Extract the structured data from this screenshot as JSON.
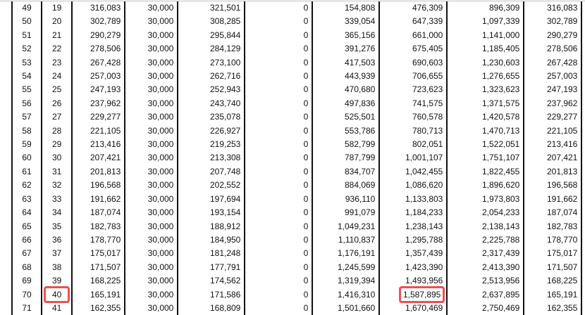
{
  "highlight_color": "#ef4f4f",
  "highlights": [
    {
      "row": 21,
      "col": 1
    },
    {
      "row": 21,
      "col": 7
    }
  ],
  "rows": [
    [
      "49",
      "19",
      "316,083",
      "30,000",
      "321,501",
      "0",
      "154,808",
      "476,309",
      "896,309",
      "316,083"
    ],
    [
      "50",
      "20",
      "302,789",
      "30,000",
      "308,285",
      "0",
      "339,054",
      "647,339",
      "1,097,339",
      "302,789"
    ],
    [
      "51",
      "21",
      "290,279",
      "30,000",
      "295,844",
      "0",
      "365,156",
      "661,000",
      "1,141,000",
      "290,279"
    ],
    [
      "52",
      "22",
      "278,506",
      "30,000",
      "284,129",
      "0",
      "391,276",
      "675,405",
      "1,185,405",
      "278,506"
    ],
    [
      "53",
      "23",
      "267,428",
      "30,000",
      "273,100",
      "0",
      "417,503",
      "690,603",
      "1,230,603",
      "267,428"
    ],
    [
      "54",
      "24",
      "257,003",
      "30,000",
      "262,716",
      "0",
      "443,939",
      "706,655",
      "1,276,655",
      "257,003"
    ],
    [
      "55",
      "25",
      "247,193",
      "30,000",
      "252,943",
      "0",
      "470,680",
      "723,623",
      "1,323,623",
      "247,193"
    ],
    [
      "56",
      "26",
      "237,962",
      "30,000",
      "243,740",
      "0",
      "497,836",
      "741,575",
      "1,371,575",
      "237,962"
    ],
    [
      "57",
      "27",
      "229,277",
      "30,000",
      "235,078",
      "0",
      "525,501",
      "760,578",
      "1,420,578",
      "229,277"
    ],
    [
      "58",
      "28",
      "221,105",
      "30,000",
      "226,927",
      "0",
      "553,786",
      "780,713",
      "1,470,713",
      "221,105"
    ],
    [
      "59",
      "29",
      "213,416",
      "30,000",
      "219,253",
      "0",
      "582,799",
      "802,051",
      "1,522,051",
      "213,416"
    ],
    [
      "60",
      "30",
      "207,421",
      "30,000",
      "213,308",
      "0",
      "787,799",
      "1,001,107",
      "1,751,107",
      "207,421"
    ],
    [
      "61",
      "31",
      "201,813",
      "30,000",
      "207,748",
      "0",
      "834,707",
      "1,042,455",
      "1,822,455",
      "201,813"
    ],
    [
      "62",
      "32",
      "196,568",
      "30,000",
      "202,552",
      "0",
      "884,069",
      "1,086,620",
      "1,896,620",
      "196,568"
    ],
    [
      "63",
      "33",
      "191,662",
      "30,000",
      "197,694",
      "0",
      "936,110",
      "1,133,803",
      "1,973,803",
      "191,662"
    ],
    [
      "64",
      "34",
      "187,074",
      "30,000",
      "193,154",
      "0",
      "991,079",
      "1,184,233",
      "2,054,233",
      "187,074"
    ],
    [
      "65",
      "35",
      "182,783",
      "30,000",
      "188,912",
      "0",
      "1,049,231",
      "1,238,143",
      "2,138,143",
      "182,783"
    ],
    [
      "66",
      "36",
      "178,770",
      "30,000",
      "184,950",
      "0",
      "1,110,837",
      "1,295,788",
      "2,225,788",
      "178,770"
    ],
    [
      "67",
      "37",
      "175,017",
      "30,000",
      "181,248",
      "0",
      "1,176,191",
      "1,357,439",
      "2,317,439",
      "175,017"
    ],
    [
      "68",
      "38",
      "171,507",
      "30,000",
      "177,791",
      "0",
      "1,245,599",
      "1,423,390",
      "2,413,390",
      "171,507"
    ],
    [
      "69",
      "39",
      "168,225",
      "30,000",
      "174,562",
      "0",
      "1,319,394",
      "1,493,956",
      "2,513,956",
      "168,225"
    ],
    [
      "70",
      "40",
      "165,191",
      "30,000",
      "171,586",
      "0",
      "1,416,310",
      "1,587,895",
      "2,637,895",
      "165,191"
    ],
    [
      "71",
      "41",
      "162,355",
      "30,000",
      "168,809",
      "0",
      "1,501,660",
      "1,670,469",
      "2,750,469",
      "162,355"
    ]
  ]
}
